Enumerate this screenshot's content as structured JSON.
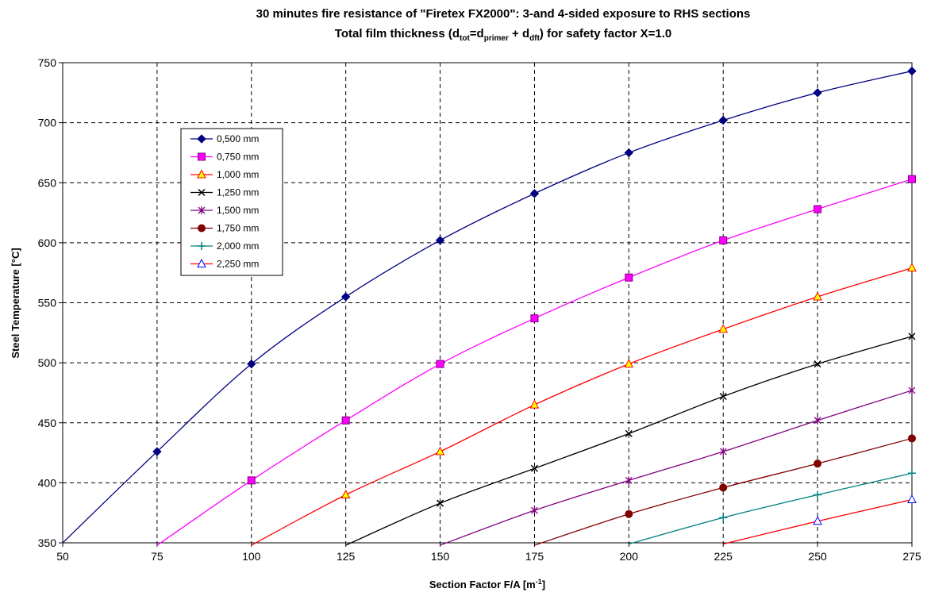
{
  "chart_data": {
    "type": "line",
    "title_main": "30 minutes fire resistance of \"Firetex FX2000\": 3-and 4-sided exposure to RHS sections",
    "title_sub": {
      "prefix": "Total film thickness (d",
      "sub1": "tot",
      "eq": "=d",
      "sub2": "primer",
      "plus": " + d",
      "sub3": "dft",
      "suffix": ") for safety factor  X=1.0"
    },
    "xlabel": {
      "text": "Section Factor F/A [m",
      "sup": "-1",
      "close": "]"
    },
    "ylabel": "Steel Temperature [°C]",
    "xlim": [
      50,
      275
    ],
    "ylim": [
      350,
      750
    ],
    "xticks": [
      50,
      75,
      100,
      125,
      150,
      175,
      200,
      225,
      250,
      275
    ],
    "yticks": [
      350,
      400,
      450,
      500,
      550,
      600,
      650,
      700,
      750
    ],
    "grid": true,
    "legend_position": "upper-left",
    "series": [
      {
        "name": "0,500 mm",
        "color": "#000080",
        "marker": "diamond",
        "x": [
          50,
          75,
          100,
          125,
          150,
          175,
          200,
          225,
          250,
          275
        ],
        "y": [
          350,
          426,
          499,
          555,
          602,
          641,
          675,
          702,
          725,
          743
        ]
      },
      {
        "name": "0,750 mm",
        "color": "#ff00ff",
        "marker": "square",
        "x": [
          75,
          100,
          125,
          150,
          175,
          200,
          225,
          250,
          275
        ],
        "y": [
          348,
          402,
          452,
          499,
          537,
          571,
          602,
          628,
          653
        ]
      },
      {
        "name": "1,000 mm",
        "color": "#ff0000",
        "marker": "triangle",
        "x": [
          100,
          125,
          150,
          175,
          200,
          225,
          250,
          275
        ],
        "y": [
          348,
          390,
          426,
          465,
          499,
          528,
          555,
          579
        ]
      },
      {
        "name": "1,250 mm",
        "color": "#000000",
        "marker": "x",
        "x": [
          125,
          150,
          175,
          200,
          225,
          250,
          275
        ],
        "y": [
          348,
          383,
          412,
          441,
          472,
          499,
          522
        ]
      },
      {
        "name": "1,500 mm",
        "color": "#800080",
        "marker": "star",
        "x": [
          150,
          175,
          200,
          225,
          250,
          275
        ],
        "y": [
          348,
          377,
          402,
          426,
          452,
          477
        ]
      },
      {
        "name": "1,750 mm",
        "color": "#800000",
        "marker": "circle",
        "x": [
          175,
          200,
          225,
          250,
          275
        ],
        "y": [
          348,
          374,
          396,
          416,
          437
        ]
      },
      {
        "name": "2,000 mm",
        "color": "#008080",
        "marker": "plus",
        "x": [
          200,
          225,
          250,
          275
        ],
        "y": [
          349,
          371,
          390,
          408
        ]
      },
      {
        "name": "2,250 mm",
        "color": "#ff0000",
        "marker": "triangle-open",
        "x": [
          225,
          250,
          275
        ],
        "y": [
          349,
          368,
          386
        ]
      }
    ]
  }
}
